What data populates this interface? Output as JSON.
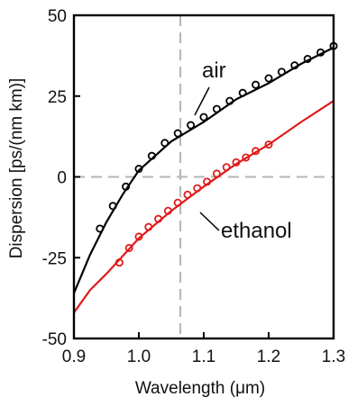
{
  "chart_data": {
    "type": "line",
    "xlabel": "Wavelength (μm)",
    "ylabel": "Dispersion [ps/(nm km)]",
    "xlim": [
      0.9,
      1.3
    ],
    "ylim": [
      -50,
      50
    ],
    "x_ticks": [
      "0.9",
      "1.0",
      "1.1",
      "1.2",
      "1.3"
    ],
    "y_ticks": [
      "-50",
      "-25",
      "0",
      "25",
      "50"
    ],
    "reference_lines": {
      "horizontal_y": 0,
      "vertical_x": 1.064
    },
    "annotations": {
      "air": "air",
      "ethanol": "ethanol"
    },
    "series": [
      {
        "name": "air",
        "style": "line",
        "color": "#000000",
        "points": [
          [
            0.9,
            -36
          ],
          [
            0.925,
            -24
          ],
          [
            0.95,
            -14
          ],
          [
            0.975,
            -5.5
          ],
          [
            1.0,
            2
          ],
          [
            1.05,
            11
          ],
          [
            1.1,
            17
          ],
          [
            1.15,
            24
          ],
          [
            1.2,
            29
          ],
          [
            1.25,
            35
          ],
          [
            1.3,
            40
          ]
        ]
      },
      {
        "name": "air",
        "style": "markers",
        "color": "#000000",
        "points": [
          [
            0.94,
            -16
          ],
          [
            0.96,
            -9
          ],
          [
            0.98,
            -3
          ],
          [
            1.0,
            2.5
          ],
          [
            1.02,
            6.5
          ],
          [
            1.04,
            10.5
          ],
          [
            1.06,
            13.5
          ],
          [
            1.08,
            16
          ],
          [
            1.1,
            18.5
          ],
          [
            1.12,
            21
          ],
          [
            1.14,
            23.5
          ],
          [
            1.16,
            26
          ],
          [
            1.18,
            28.5
          ],
          [
            1.2,
            30.5
          ],
          [
            1.22,
            32.5
          ],
          [
            1.24,
            34.5
          ],
          [
            1.26,
            36.5
          ],
          [
            1.28,
            38.5
          ],
          [
            1.3,
            40.5
          ]
        ]
      },
      {
        "name": "ethanol",
        "style": "line",
        "color": "#e01b1b",
        "points": [
          [
            0.9,
            -42
          ],
          [
            0.925,
            -35
          ],
          [
            0.95,
            -30
          ],
          [
            0.975,
            -24.5
          ],
          [
            1.0,
            -19
          ],
          [
            1.05,
            -10.5
          ],
          [
            1.1,
            -3
          ],
          [
            1.15,
            4
          ],
          [
            1.2,
            10
          ],
          [
            1.25,
            17
          ],
          [
            1.3,
            23.5
          ]
        ]
      },
      {
        "name": "ethanol",
        "style": "markers",
        "color": "#e01b1b",
        "points": [
          [
            0.97,
            -26.5
          ],
          [
            0.985,
            -22
          ],
          [
            1.0,
            -18.5
          ],
          [
            1.015,
            -15.5
          ],
          [
            1.03,
            -13
          ],
          [
            1.045,
            -10.5
          ],
          [
            1.06,
            -8
          ],
          [
            1.075,
            -5.5
          ],
          [
            1.09,
            -3.5
          ],
          [
            1.105,
            -1.5
          ],
          [
            1.12,
            1
          ],
          [
            1.135,
            3
          ],
          [
            1.15,
            4.5
          ],
          [
            1.165,
            6
          ],
          [
            1.18,
            8
          ],
          [
            1.2,
            10
          ]
        ]
      }
    ]
  }
}
